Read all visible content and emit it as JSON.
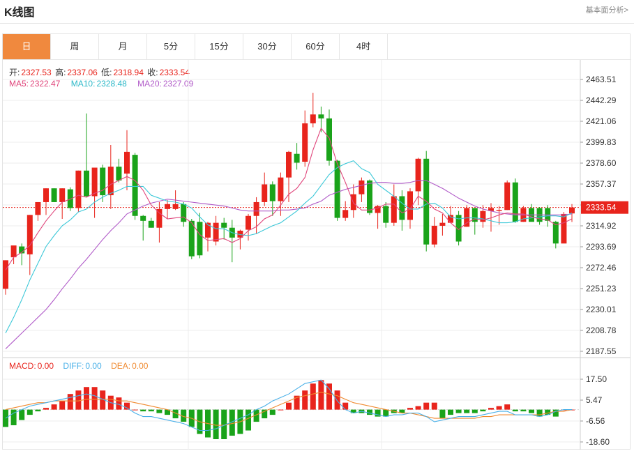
{
  "header": {
    "title": "K线图",
    "link": "基本面分析>"
  },
  "tabs": [
    "日",
    "周",
    "月",
    "5分",
    "15分",
    "30分",
    "60分",
    "4时"
  ],
  "active_tab": 0,
  "ohlc_info": {
    "open_label": "开:",
    "open": "2327.53",
    "high_label": "高:",
    "high": "2337.06",
    "low_label": "低:",
    "low": "2318.94",
    "close_label": "收:",
    "close": "2333.54"
  },
  "ma_info": {
    "ma5_label": "MA5:",
    "ma5": "2322.47",
    "ma10_label": "MA10:",
    "ma10": "2328.48",
    "ma20_label": "MA20:",
    "ma20": "2327.09"
  },
  "macd_info": {
    "macd_label": "MACD:",
    "macd": "0.00",
    "diff_label": "DIFF:",
    "diff": "0.00",
    "dea_label": "DEA:",
    "dea": "0.00"
  },
  "colors": {
    "up": "#e8241c",
    "down": "#1aa31a",
    "ma5": "#e0457b",
    "ma10": "#3cc8d8",
    "ma20": "#b05ac8",
    "diff": "#4ab0e8",
    "dea": "#f08a30",
    "accent": "#f0893e"
  },
  "chart_data": {
    "type": "candlestick",
    "price_axis": {
      "min": 2187.55,
      "max": 2463.51,
      "ticks": [
        "2463.51",
        "2442.29",
        "2421.06",
        "2399.83",
        "2378.60",
        "2357.37",
        "2336.14",
        "2314.92",
        "2293.69",
        "2272.46",
        "2251.23",
        "2230.01",
        "2208.78",
        "2187.55"
      ]
    },
    "current_price": "2333.54",
    "macd_axis": {
      "min": -18.6,
      "max": 17.5,
      "ticks": [
        "17.50",
        "5.47",
        "-6.56",
        "-18.60"
      ]
    },
    "candles": [
      [
        2251,
        2280,
        2245,
        2280
      ],
      [
        2283,
        2295,
        2276,
        2294
      ],
      [
        2294,
        2287,
        2275,
        2297
      ],
      [
        2286,
        2326,
        2265,
        2326
      ],
      [
        2326,
        2339,
        2320,
        2339
      ],
      [
        2339,
        2353,
        2326,
        2353
      ],
      [
        2353,
        2339,
        2339,
        2353
      ],
      [
        2339,
        2353,
        2322,
        2353
      ],
      [
        2352,
        2333,
        2330,
        2354
      ],
      [
        2333,
        2371,
        2329,
        2371
      ],
      [
        2371,
        2345,
        2344,
        2429
      ],
      [
        2345,
        2374,
        2323,
        2374
      ],
      [
        2374,
        2346,
        2339,
        2377
      ],
      [
        2346,
        2375,
        2332,
        2397
      ],
      [
        2375,
        2361,
        2359,
        2383
      ],
      [
        2368,
        2390,
        2351,
        2412
      ],
      [
        2387,
        2325,
        2321,
        2389
      ],
      [
        2325,
        2320,
        2300,
        2326
      ],
      [
        2320,
        2313,
        2313,
        2323
      ],
      [
        2313,
        2332,
        2298,
        2339
      ],
      [
        2332,
        2337,
        2322,
        2341
      ],
      [
        2332,
        2337,
        2331,
        2351
      ],
      [
        2337,
        2319,
        2314,
        2339
      ],
      [
        2320,
        2284,
        2281,
        2322
      ],
      [
        2319,
        2285,
        2282,
        2328
      ],
      [
        2303,
        2318,
        2289,
        2319
      ],
      [
        2299,
        2318,
        2295,
        2325
      ],
      [
        2318,
        2313,
        2301,
        2323
      ],
      [
        2313,
        2303,
        2278,
        2321
      ],
      [
        2303,
        2310,
        2291,
        2311
      ],
      [
        2311,
        2325,
        2300,
        2327
      ],
      [
        2325,
        2339,
        2307,
        2344
      ],
      [
        2339,
        2357,
        2335,
        2369
      ],
      [
        2357,
        2340,
        2325,
        2360
      ],
      [
        2340,
        2364,
        2325,
        2369
      ],
      [
        2364,
        2390,
        2339,
        2391
      ],
      [
        2388,
        2379,
        2372,
        2399
      ],
      [
        2380,
        2419,
        2375,
        2432
      ],
      [
        2419,
        2428,
        2415,
        2450
      ],
      [
        2428,
        2424,
        2410,
        2436
      ],
      [
        2424,
        2381,
        2376,
        2433
      ],
      [
        2381,
        2323,
        2320,
        2382
      ],
      [
        2323,
        2331,
        2320,
        2340
      ],
      [
        2331,
        2347,
        2323,
        2357
      ],
      [
        2347,
        2361,
        2339,
        2364
      ],
      [
        2361,
        2328,
        2326,
        2362
      ],
      [
        2328,
        2335,
        2312,
        2336
      ],
      [
        2335,
        2318,
        2313,
        2339
      ],
      [
        2318,
        2345,
        2315,
        2357
      ],
      [
        2345,
        2321,
        2310,
        2351
      ],
      [
        2321,
        2350,
        2312,
        2353
      ],
      [
        2350,
        2383,
        2336,
        2384
      ],
      [
        2383,
        2296,
        2289,
        2391
      ],
      [
        2296,
        2315,
        2293,
        2324
      ],
      [
        2315,
        2318,
        2305,
        2327
      ],
      [
        2318,
        2326,
        2318,
        2335
      ],
      [
        2326,
        2299,
        2295,
        2330
      ],
      [
        2314,
        2333,
        2314,
        2336
      ],
      [
        2333,
        2319,
        2306,
        2332
      ],
      [
        2319,
        2330,
        2313,
        2336
      ],
      [
        2330,
        2333,
        2309,
        2338
      ],
      [
        2330,
        2331,
        2316,
        2335
      ],
      [
        2331,
        2359,
        2331,
        2361
      ],
      [
        2359,
        2319,
        2318,
        2363
      ],
      [
        2319,
        2333,
        2319,
        2335
      ],
      [
        2333,
        2319,
        2321,
        2337
      ],
      [
        2333,
        2319,
        2316,
        2334
      ],
      [
        2333,
        2320,
        2314,
        2336
      ],
      [
        2319,
        2297,
        2292,
        2320
      ],
      [
        2297,
        2327,
        2298,
        2329
      ],
      [
        2327.53,
        2333.54,
        2318.94,
        2337.06
      ]
    ],
    "ma5": [
      2270,
      2283,
      2288,
      2295,
      2308,
      2320,
      2330,
      2339,
      2342,
      2346,
      2344,
      2348,
      2351,
      2357,
      2361,
      2365,
      2361,
      2351,
      2336,
      2328,
      2322,
      2323,
      2324,
      2318,
      2306,
      2300,
      2301,
      2302,
      2298,
      2302,
      2310,
      2314,
      2322,
      2326,
      2336,
      2347,
      2353,
      2364,
      2392,
      2414,
      2404,
      2378,
      2359,
      2338,
      2331,
      2331,
      2333,
      2337,
      2337,
      2328,
      2332,
      2345,
      2340,
      2332,
      2328,
      2318,
      2311,
      2318,
      2322,
      2321,
      2323,
      2326,
      2328,
      2327,
      2327,
      2324,
      2322,
      2321,
      2316,
      2318,
      2322
    ],
    "ma10": [
      2206,
      2222,
      2240,
      2260,
      2277,
      2294,
      2305,
      2315,
      2321,
      2329,
      2332,
      2339,
      2344,
      2348,
      2351,
      2355,
      2355,
      2355,
      2346,
      2343,
      2340,
      2339,
      2337,
      2333,
      2324,
      2316,
      2312,
      2312,
      2308,
      2306,
      2305,
      2307,
      2311,
      2315,
      2318,
      2324,
      2330,
      2338,
      2345,
      2356,
      2367,
      2374,
      2378,
      2381,
      2373,
      2369,
      2357,
      2351,
      2345,
      2338,
      2332,
      2332,
      2337,
      2338,
      2333,
      2324,
      2322,
      2323,
      2323,
      2322,
      2320,
      2318,
      2318,
      2319,
      2322,
      2323,
      2324,
      2325,
      2325,
      2324,
      2328
    ],
    "ma20": [
      2190,
      2198,
      2206,
      2214,
      2222,
      2230,
      2240,
      2251,
      2261,
      2272,
      2281,
      2291,
      2301,
      2310,
      2318,
      2327,
      2331,
      2335,
      2338,
      2340,
      2342,
      2341,
      2340,
      2339,
      2338,
      2337,
      2336,
      2335,
      2333,
      2331,
      2330,
      2330,
      2330,
      2330,
      2331,
      2331,
      2332,
      2333,
      2337,
      2340,
      2346,
      2349,
      2352,
      2354,
      2356,
      2358,
      2359,
      2359,
      2358,
      2358,
      2359,
      2361,
      2361,
      2357,
      2353,
      2348,
      2343,
      2339,
      2335,
      2332,
      2330,
      2328,
      2327,
      2326,
      2326,
      2326,
      2326,
      2326,
      2326,
      2326,
      2327
    ],
    "macd": [
      -10,
      -9,
      -6,
      -3,
      -1,
      1,
      3,
      5,
      9,
      11,
      13,
      13,
      11,
      8,
      7,
      4,
      0,
      -1,
      -1,
      -2,
      -3,
      -5,
      -7,
      -10,
      -14,
      -16,
      -17,
      -17,
      -15,
      -14,
      -12,
      -7,
      -5,
      -3,
      0,
      4,
      8,
      11,
      15,
      17,
      15,
      11,
      4,
      -2,
      -2,
      -3,
      -4,
      -4,
      -2,
      -2,
      1,
      2,
      4,
      4,
      -5,
      -3,
      -2,
      -2,
      -2,
      -1,
      1,
      2,
      3,
      -1,
      -1,
      -2,
      -4,
      -3,
      -4,
      0,
      0
    ],
    "diff": [
      -5,
      -2,
      0,
      2,
      3,
      4,
      5,
      6,
      7,
      8,
      9,
      8,
      6,
      4,
      3,
      1,
      -2,
      -4,
      -4,
      -5,
      -6,
      -7,
      -8,
      -10,
      -12,
      -12,
      -11,
      -9,
      -7,
      -5,
      -3,
      0,
      2,
      5,
      7,
      9,
      12,
      15,
      16,
      17,
      12,
      5,
      0,
      -2,
      -1,
      -2,
      -3,
      -4,
      -3,
      -3,
      -2,
      -2,
      -4,
      -7,
      -6,
      -5,
      -4,
      -4,
      -4,
      -3,
      -2,
      -1,
      -1,
      -3,
      -3,
      -3,
      -4,
      -3,
      -1,
      0,
      0
    ],
    "dea": [
      0,
      1,
      2,
      3,
      4,
      4,
      5,
      5,
      5,
      5,
      6,
      6,
      6,
      6,
      5,
      5,
      4,
      3,
      2,
      1,
      0,
      -2,
      -4,
      -5,
      -7,
      -8,
      -9,
      -9,
      -8,
      -7,
      -5,
      -3,
      -1,
      1,
      3,
      5,
      7,
      8,
      9,
      10,
      9,
      8,
      6,
      4,
      3,
      2,
      1,
      0,
      -1,
      -2,
      -2,
      -3,
      -4,
      -5,
      -5,
      -5,
      -5,
      -5,
      -5,
      -4,
      -4,
      -3,
      -3,
      -3,
      -3,
      -3,
      -3,
      -2,
      -1,
      -1,
      0
    ]
  }
}
